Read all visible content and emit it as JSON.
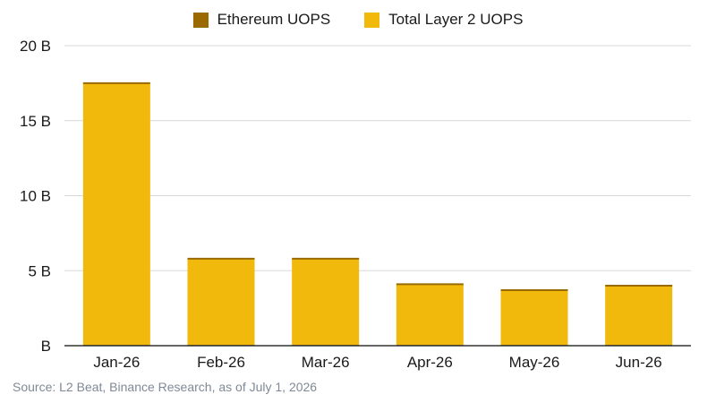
{
  "chart_data": {
    "type": "bar",
    "stacked": true,
    "categories": [
      "Jan-26",
      "Feb-26",
      "Mar-26",
      "Apr-26",
      "May-26",
      "Jun-26"
    ],
    "series": [
      {
        "name": "Ethereum UOPS",
        "color": "#9a6a00",
        "values": [
          0.06,
          0.06,
          0.06,
          0.06,
          0.06,
          0.06
        ]
      },
      {
        "name": "Total Layer 2 UOPS",
        "color": "#f0b90b",
        "values": [
          17.44,
          5.74,
          5.74,
          4.04,
          3.64,
          3.94
        ]
      }
    ],
    "ylim": [
      0,
      20
    ],
    "yticks": [
      0,
      5,
      10,
      15,
      20
    ],
    "ytick_labels": [
      "B",
      "5 B",
      "10 B",
      "15 B",
      "20 B"
    ],
    "grid": true,
    "legend_position": "top-center"
  },
  "source": "Source: L2 Beat, Binance Research, as of July 1, 2026"
}
